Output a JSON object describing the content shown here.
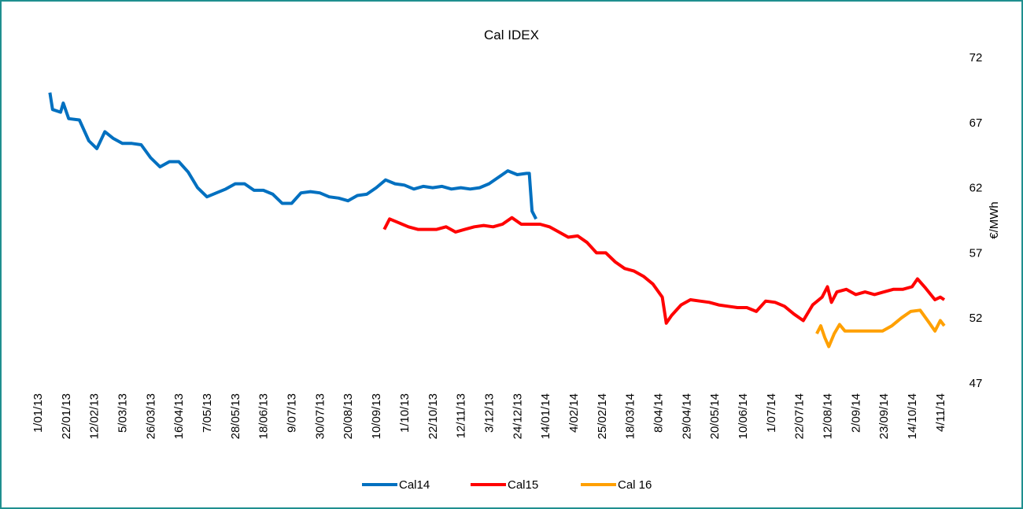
{
  "chart_data": {
    "type": "line",
    "title": "Cal IDEX",
    "y_label": "€/MWh",
    "xlim": [
      "1/01/13",
      "7/11/14"
    ],
    "ylim": [
      47,
      72
    ],
    "yticks": [
      47,
      52,
      57,
      62,
      67,
      72
    ],
    "y_axis_side": "right",
    "xticks": [
      "1/01/13",
      "22/01/13",
      "12/02/13",
      "5/03/13",
      "26/03/13",
      "16/04/13",
      "7/05/13",
      "28/05/13",
      "18/06/13",
      "9/07/13",
      "30/07/13",
      "20/08/13",
      "10/09/13",
      "1/10/13",
      "22/10/13",
      "12/11/13",
      "3/12/13",
      "24/12/13",
      "14/01/14",
      "4/02/14",
      "25/02/14",
      "18/03/14",
      "8/04/14",
      "29/04/14",
      "20/05/14",
      "10/06/14",
      "1/07/14",
      "22/07/14",
      "12/08/14",
      "2/09/14",
      "23/09/14",
      "14/10/14",
      "4/11/14"
    ],
    "series": [
      {
        "name": "Cal14",
        "color": "#0070c0",
        "x": [
          "10/01/13",
          "12/01/13",
          "18/01/13",
          "20/01/13",
          "24/01/13",
          "1/02/13",
          "8/02/13",
          "14/02/13",
          "20/02/13",
          "26/02/13",
          "5/03/13",
          "12/03/13",
          "19/03/13",
          "26/03/13",
          "2/04/13",
          "9/04/13",
          "16/04/13",
          "23/04/13",
          "30/04/13",
          "7/05/13",
          "14/05/13",
          "21/05/13",
          "28/05/13",
          "4/06/13",
          "11/06/13",
          "18/06/13",
          "25/06/13",
          "2/07/13",
          "9/07/13",
          "16/07/13",
          "23/07/13",
          "30/07/13",
          "6/08/13",
          "13/08/13",
          "20/08/13",
          "27/08/13",
          "3/09/13",
          "10/09/13",
          "17/09/13",
          "24/09/13",
          "1/10/13",
          "8/10/13",
          "15/10/13",
          "22/10/13",
          "29/10/13",
          "5/11/13",
          "12/11/13",
          "19/11/13",
          "26/11/13",
          "3/12/13",
          "10/12/13",
          "17/12/13",
          "24/12/13",
          "31/12/13",
          "2/01/14",
          "4/01/14",
          "7/01/14"
        ],
        "values": [
          69.3,
          68.0,
          67.8,
          68.5,
          67.3,
          67.2,
          65.6,
          65.0,
          66.3,
          65.8,
          65.4,
          65.4,
          65.3,
          64.3,
          63.6,
          64.0,
          64.0,
          63.2,
          62.0,
          61.3,
          61.6,
          61.9,
          62.3,
          62.3,
          61.8,
          61.8,
          61.5,
          60.8,
          60.8,
          61.6,
          61.7,
          61.6,
          61.3,
          61.2,
          61.0,
          61.4,
          61.5,
          62.0,
          62.6,
          62.3,
          62.2,
          61.9,
          62.1,
          62.0,
          62.1,
          61.9,
          62.0,
          61.9,
          62.0,
          62.3,
          62.8,
          63.3,
          63.0,
          63.1,
          63.1,
          60.2,
          59.6
        ]
      },
      {
        "name": "Cal15",
        "color": "#ff0000",
        "x": [
          "16/09/13",
          "20/09/13",
          "27/09/13",
          "4/10/13",
          "11/10/13",
          "18/10/13",
          "25/10/13",
          "1/11/13",
          "8/11/13",
          "15/11/13",
          "22/11/13",
          "29/11/13",
          "6/12/13",
          "13/12/13",
          "20/12/13",
          "27/12/13",
          "3/01/14",
          "10/01/14",
          "17/01/14",
          "24/01/14",
          "31/01/14",
          "7/02/14",
          "14/02/14",
          "21/02/14",
          "28/02/14",
          "7/03/14",
          "14/03/14",
          "21/03/14",
          "28/03/14",
          "4/04/14",
          "11/04/14",
          "14/04/14",
          "18/04/14",
          "25/04/14",
          "2/05/14",
          "9/05/14",
          "16/05/14",
          "23/05/14",
          "30/05/14",
          "6/06/14",
          "13/06/14",
          "20/06/14",
          "27/06/14",
          "4/07/14",
          "11/07/14",
          "18/07/14",
          "25/07/14",
          "1/08/14",
          "8/08/14",
          "12/08/14",
          "15/08/14",
          "19/08/14",
          "26/08/14",
          "2/09/14",
          "9/09/14",
          "16/09/14",
          "23/09/14",
          "30/09/14",
          "7/10/14",
          "14/10/14",
          "18/10/14",
          "24/10/14",
          "31/10/14",
          "4/11/14",
          "7/11/14"
        ],
        "values": [
          58.8,
          59.6,
          59.3,
          59.0,
          58.8,
          58.8,
          58.8,
          59.0,
          58.6,
          58.8,
          59.0,
          59.1,
          59.0,
          59.2,
          59.7,
          59.2,
          59.2,
          59.2,
          59.0,
          58.6,
          58.2,
          58.3,
          57.8,
          57.0,
          57.0,
          56.3,
          55.8,
          55.6,
          55.2,
          54.6,
          53.6,
          51.6,
          52.2,
          53.0,
          53.4,
          53.3,
          53.2,
          53.0,
          52.9,
          52.8,
          52.8,
          52.5,
          53.3,
          53.2,
          52.9,
          52.3,
          51.8,
          53.0,
          53.6,
          54.4,
          53.2,
          54.0,
          54.2,
          53.8,
          54.0,
          53.8,
          54.0,
          54.2,
          54.2,
          54.4,
          55.0,
          54.3,
          53.4,
          53.6,
          53.4
        ]
      },
      {
        "name": "Cal 16",
        "color": "#ffa000",
        "x": [
          "4/08/14",
          "7/08/14",
          "10/08/14",
          "13/08/14",
          "17/08/14",
          "21/08/14",
          "25/08/14",
          "1/09/14",
          "8/09/14",
          "15/09/14",
          "22/09/14",
          "29/09/14",
          "6/10/14",
          "13/10/14",
          "20/10/14",
          "27/10/14",
          "31/10/14",
          "4/11/14",
          "7/11/14"
        ],
        "values": [
          50.8,
          51.4,
          50.5,
          49.8,
          50.8,
          51.5,
          51.0,
          51.0,
          51.0,
          51.0,
          51.0,
          51.4,
          52.0,
          52.5,
          52.6,
          51.6,
          51.0,
          51.8,
          51.4
        ]
      }
    ]
  }
}
